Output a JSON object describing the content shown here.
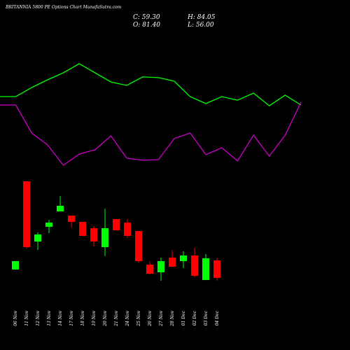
{
  "chart_data": [
    {
      "type": "candlestick",
      "title": "BRITANNIA 5800 PE Options Chart MunafaSutra.com",
      "info": [
        "C: 59.30",
        "H: 84.05",
        "O: 81.40",
        "L: 56.00"
      ],
      "categories": [
        "06 Nov",
        "11 Nov",
        "12 Nov",
        "13 Nov",
        "14 Nov",
        "17 Nov",
        "18 Nov",
        "19 Nov",
        "20 Nov",
        "21 Nov",
        "24 Nov",
        "25 Nov",
        "26 Nov",
        "27 Nov",
        "28 Nov",
        "01 Dec",
        "02 Dec",
        "03 Dec",
        "04 Dec"
      ],
      "open": [
        69.9,
        181.3,
        105.3,
        123.8,
        143.3,
        138,
        130,
        122.1,
        98.2,
        133.6,
        129.1,
        118.5,
        76.1,
        66.4,
        84.9,
        80.5,
        87.6,
        56.6,
        81.4
      ],
      "high": [
        80.5,
        181.3,
        116.8,
        132.7,
        162.7,
        138,
        130,
        124.7,
        146.8,
        133.6,
        133.6,
        118.5,
        80.5,
        84.9,
        94.7,
        92.9,
        97.3,
        89.4,
        84.05
      ],
      "low": [
        69.9,
        96.4,
        94.7,
        115.9,
        143.3,
        122.9,
        112.3,
        99.1,
        86.7,
        119.4,
        109.7,
        78.7,
        63.7,
        55.8,
        73.4,
        71.7,
        60.2,
        56.6,
        56
      ],
      "close": [
        80.5,
        98.2,
        114.1,
        129.1,
        150.4,
        130,
        112.3,
        105.3,
        122.1,
        119.4,
        112.3,
        80.5,
        64.6,
        80.5,
        73.4,
        87.6,
        61.9,
        84.1,
        59.3
      ],
      "up_color": "#00ff00",
      "down_color": "#ff0000",
      "ylim": [
        47.8,
        189.3
      ]
    },
    {
      "type": "line",
      "series": [
        {
          "color": "#00ff00",
          "values": [
            65.9,
            65.9,
            73.5,
            80,
            85.9,
            93.5,
            85.9,
            78.2,
            75.3,
            82.4,
            81.8,
            78.8,
            65.9,
            60,
            65.9,
            62.9,
            68.8,
            58.2,
            67.1,
            58.8
          ]
        },
        {
          "color": "#cc00cc",
          "values": [
            58.8,
            58.8,
            35.3,
            25.3,
            8.2,
            17.6,
            21.2,
            32.9,
            14.1,
            12.4,
            12.9,
            30.6,
            35.3,
            17.1,
            22.9,
            11.8,
            33.5,
            15.9,
            33.5,
            61.2
          ]
        }
      ],
      "ylim": [
        0,
        100
      ]
    }
  ]
}
